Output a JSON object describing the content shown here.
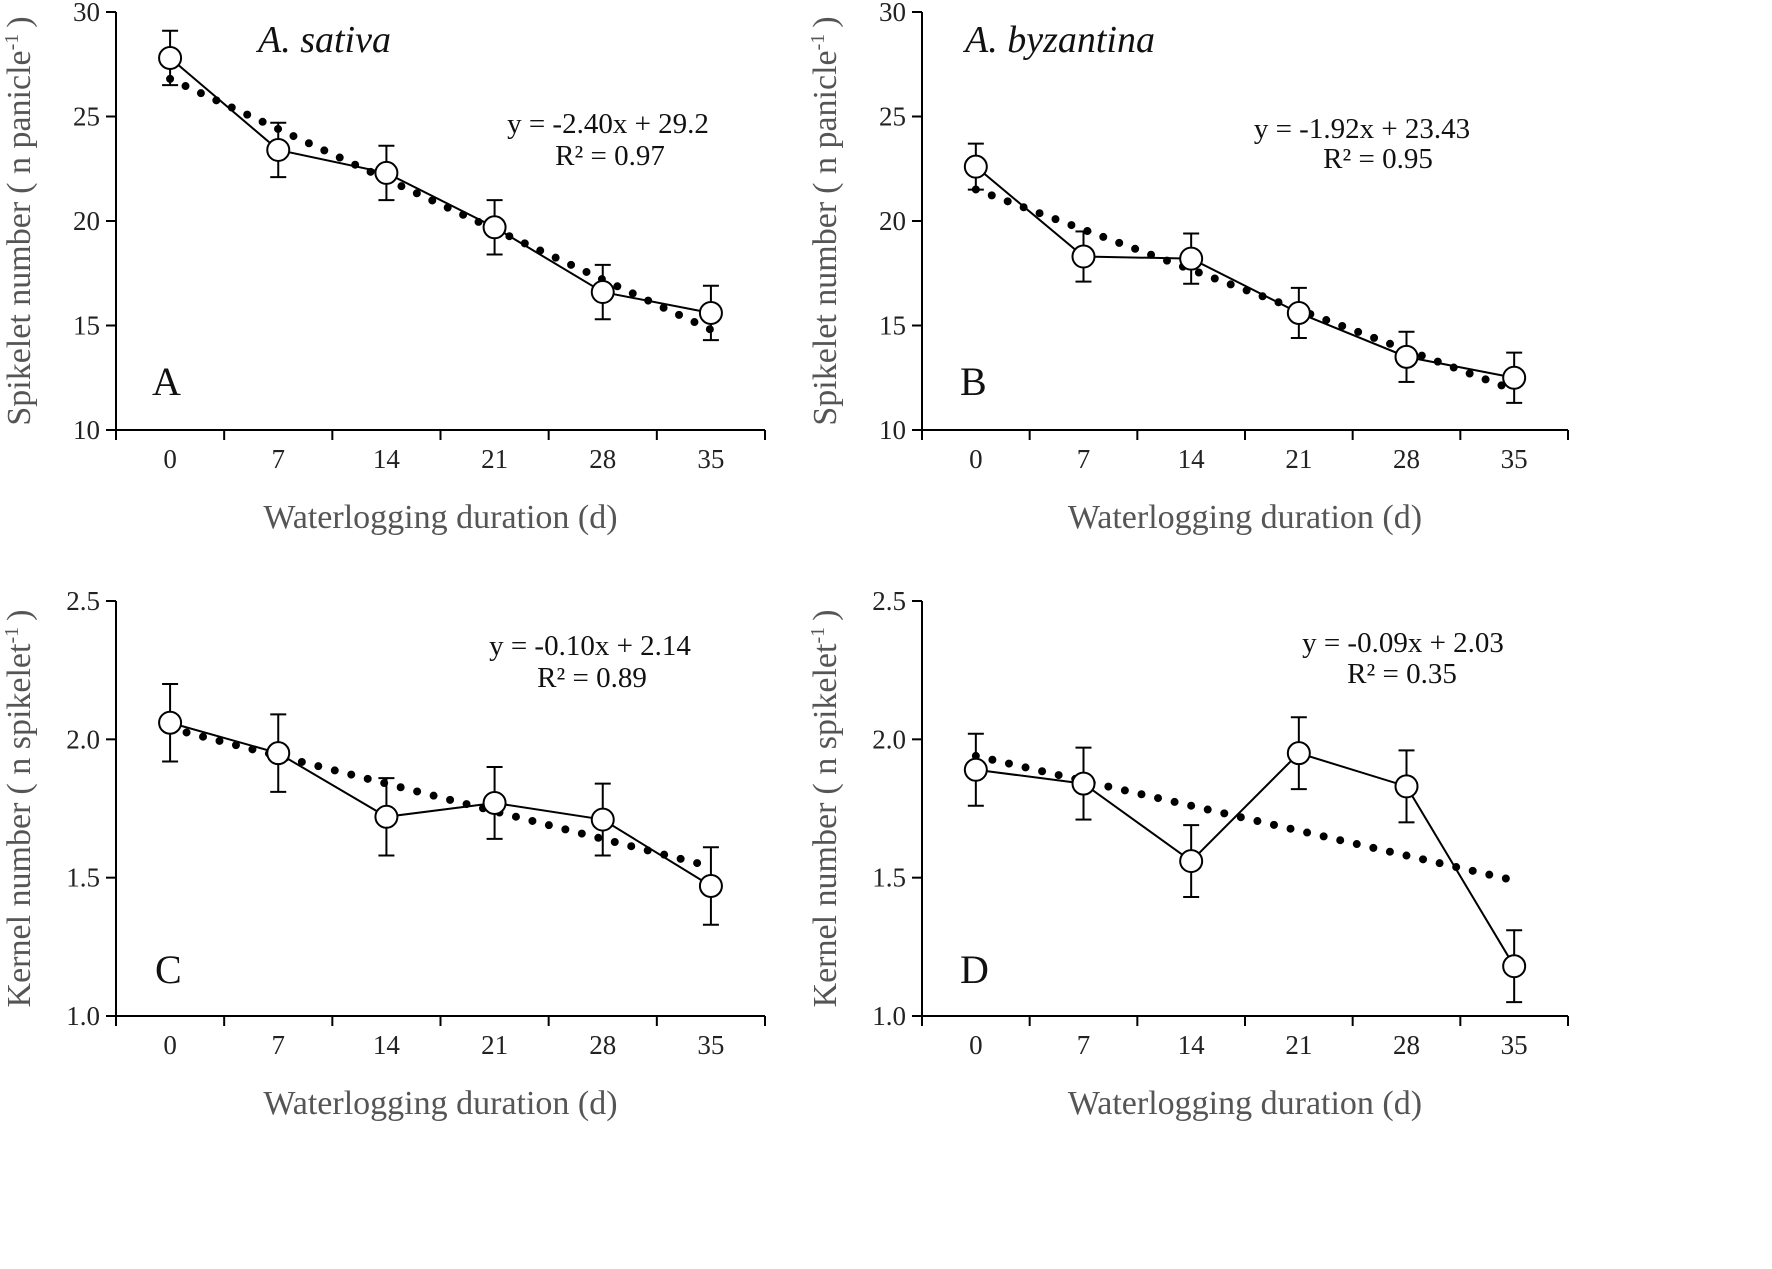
{
  "chart_data": [
    {
      "type": "line",
      "panel_letter": "A",
      "species": "A. sativa",
      "xlabel": "Waterlogging duration (d)",
      "ylabel": "Spikelet number (n panicle-1)",
      "ylabel_main": "Spikelet number",
      "ylabel_unit_open": "( n panicle",
      "ylabel_unit_sup": "-1",
      "ylabel_unit_close": ")",
      "x": [
        0,
        7,
        14,
        21,
        28,
        35
      ],
      "y": [
        27.8,
        23.4,
        22.3,
        19.7,
        16.6,
        15.6
      ],
      "error": [
        1.3,
        1.3,
        1.3,
        1.3,
        1.3,
        1.3
      ],
      "trend": {
        "slope": -2.4,
        "intercept": 29.2,
        "from_index": 1,
        "to_index": 6,
        "equation": "y = -2.40x + 29.2",
        "r2": "R² = 0.97"
      },
      "ylim": [
        10,
        30
      ],
      "yticks": [
        10,
        15,
        20,
        25,
        30
      ],
      "ytick_labels": [
        "10",
        "15",
        "20",
        "25",
        "30"
      ],
      "xtick_labels": [
        "0",
        "7",
        "14",
        "21",
        "28",
        "35"
      ]
    },
    {
      "type": "line",
      "panel_letter": "B",
      "species": "A. byzantina",
      "xlabel": "Waterlogging duration (d)",
      "ylabel": "Spikelet number (n panicle-1)",
      "ylabel_main": "Spikelet number",
      "ylabel_unit_open": "( n panicle",
      "ylabel_unit_sup": "-1",
      "ylabel_unit_close": ")",
      "x": [
        0,
        7,
        14,
        21,
        28,
        35
      ],
      "y": [
        22.6,
        18.3,
        18.2,
        15.6,
        13.5,
        12.5
      ],
      "error": [
        1.1,
        1.2,
        1.2,
        1.2,
        1.2,
        1.2
      ],
      "trend": {
        "slope": -1.92,
        "intercept": 23.43,
        "from_index": 1,
        "to_index": 6,
        "equation": "y = -1.92x + 23.43",
        "r2": "R² = 0.95"
      },
      "ylim": [
        10,
        30
      ],
      "yticks": [
        10,
        15,
        20,
        25,
        30
      ],
      "ytick_labels": [
        "10",
        "15",
        "20",
        "25",
        "30"
      ],
      "xtick_labels": [
        "0",
        "7",
        "14",
        "21",
        "28",
        "35"
      ]
    },
    {
      "type": "line",
      "panel_letter": "C",
      "species": "",
      "xlabel": "Waterlogging duration (d)",
      "ylabel": "Kernel number (n spikelet-1)",
      "ylabel_main": "Kernel number",
      "ylabel_unit_open": "( n spikelet",
      "ylabel_unit_sup": "-1",
      "ylabel_unit_close": ")",
      "x": [
        0,
        7,
        14,
        21,
        28,
        35
      ],
      "y": [
        2.06,
        1.95,
        1.72,
        1.77,
        1.71,
        1.47
      ],
      "error": [
        0.14,
        0.14,
        0.14,
        0.13,
        0.13,
        0.14
      ],
      "trend": {
        "slope": -0.1,
        "intercept": 2.14,
        "from_index": 1,
        "to_index": 6,
        "equation": "y = -0.10x + 2.14",
        "r2": "R² = 0.89"
      },
      "ylim": [
        1.0,
        2.5
      ],
      "yticks": [
        1.0,
        1.5,
        2.0,
        2.5
      ],
      "ytick_labels": [
        "1.0",
        "1.5",
        "2.0",
        "2.5"
      ],
      "xtick_labels": [
        "0",
        "7",
        "14",
        "21",
        "28",
        "35"
      ]
    },
    {
      "type": "line",
      "panel_letter": "D",
      "species": "",
      "xlabel": "Waterlogging duration (d)",
      "ylabel": "Kernel number (n spikelet-1)",
      "ylabel_main": "Kernel number",
      "ylabel_unit_open": "( n spikelet",
      "ylabel_unit_sup": "-1",
      "ylabel_unit_close": ")",
      "x": [
        0,
        7,
        14,
        21,
        28,
        35
      ],
      "y": [
        1.89,
        1.84,
        1.56,
        1.95,
        1.83,
        1.18
      ],
      "error": [
        0.13,
        0.13,
        0.13,
        0.13,
        0.13,
        0.13
      ],
      "trend": {
        "slope": -0.09,
        "intercept": 2.03,
        "from_index": 1,
        "to_index": 6,
        "equation": "y = -0.09x + 2.03",
        "r2": "R² = 0.35"
      },
      "ylim": [
        1.0,
        2.5
      ],
      "yticks": [
        1.0,
        1.5,
        2.0,
        2.5
      ],
      "ytick_labels": [
        "1.0",
        "1.5",
        "2.0",
        "2.5"
      ],
      "xtick_labels": [
        "0",
        "7",
        "14",
        "21",
        "28",
        "35"
      ]
    }
  ],
  "colors": {
    "line": "#000000",
    "marker_fill": "#ffffff",
    "axis_title": "#555555"
  }
}
